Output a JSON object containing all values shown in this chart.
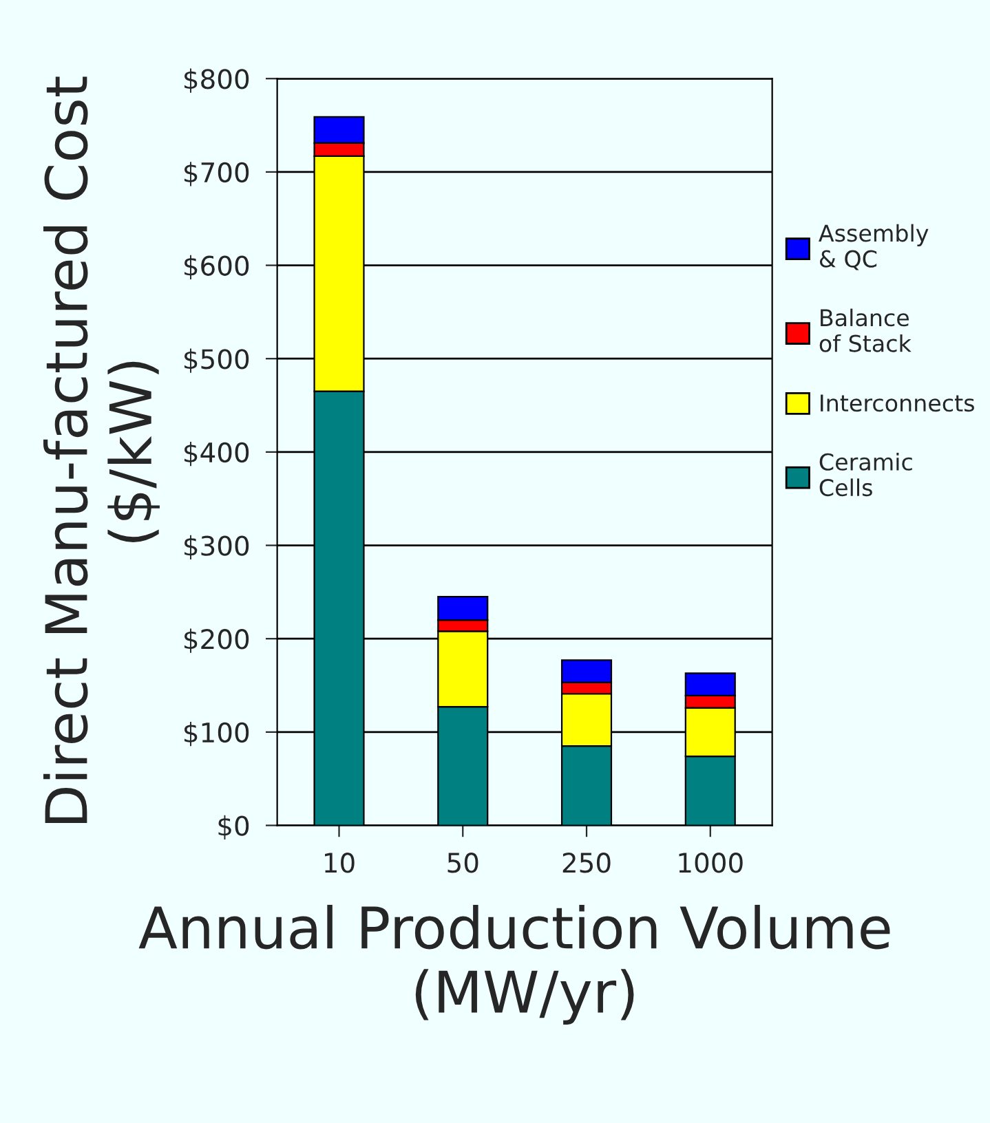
{
  "chart_data": {
    "type": "bar",
    "stacked": true,
    "xlabel": "Annual Production Volume  (MW/yr)",
    "ylabel": "Direct Manu-factured Cost ($/kW)",
    "categories": [
      "10",
      "50",
      "250",
      "1000"
    ],
    "series": [
      {
        "name": "Ceramic Cells",
        "color": "#008080",
        "values": [
          465,
          127,
          85,
          74
        ]
      },
      {
        "name": "Interconnects",
        "color": "#ffff00",
        "values": [
          252,
          81,
          56,
          52
        ]
      },
      {
        "name": "Balance of Stack",
        "color": "#ff0000",
        "values": [
          14,
          12,
          12,
          13
        ]
      },
      {
        "name": "Assembly & QC",
        "color": "#0000ff",
        "values": [
          28,
          25,
          24,
          24
        ]
      }
    ],
    "ylim": [
      0,
      800
    ],
    "yticks": [
      {
        "value": 0,
        "label": "$0"
      },
      {
        "value": 100,
        "label": "$100"
      },
      {
        "value": 200,
        "label": "$200"
      },
      {
        "value": 300,
        "label": "$300"
      },
      {
        "value": 400,
        "label": "$400"
      },
      {
        "value": 500,
        "label": "$500"
      },
      {
        "value": 600,
        "label": "$600"
      },
      {
        "value": 700,
        "label": "$700"
      },
      {
        "value": 800,
        "label": "$800"
      }
    ],
    "grid": "y",
    "legend": "right"
  }
}
